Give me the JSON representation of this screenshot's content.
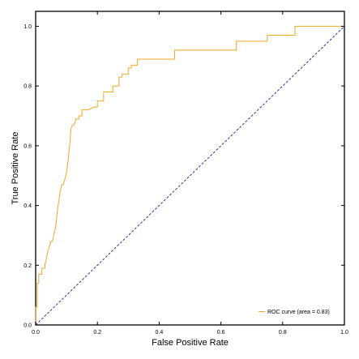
{
  "chart_data": {
    "type": "line",
    "title": "",
    "xlabel": "False Positive Rate",
    "ylabel": "True Positive Rate",
    "xlim": [
      0.0,
      1.0
    ],
    "ylim": [
      0.0,
      1.05
    ],
    "x_ticks": [
      0.0,
      0.2,
      0.4,
      0.6,
      0.8,
      1.0
    ],
    "y_ticks": [
      0.0,
      0.2,
      0.4,
      0.6,
      0.8,
      1.0
    ],
    "x_tick_labels": [
      "0.0",
      "0.2",
      "0.4",
      "0.6",
      "0.8",
      "1.0"
    ],
    "y_tick_labels": [
      "0.0",
      "0.2",
      "0.4",
      "0.6",
      "0.8",
      "1.0"
    ],
    "grid": false,
    "legend_position": "lower-right",
    "series": [
      {
        "name": "ROC curve (area = 0.83)",
        "color": "#f5a623",
        "style": "solid",
        "x": [
          0.0,
          0.0,
          0.005,
          0.005,
          0.01,
          0.01,
          0.02,
          0.02,
          0.03,
          0.03,
          0.04,
          0.05,
          0.055,
          0.06,
          0.065,
          0.07,
          0.08,
          0.085,
          0.09,
          0.095,
          0.1,
          0.105,
          0.11,
          0.115,
          0.12,
          0.125,
          0.13,
          0.14,
          0.14,
          0.15,
          0.15,
          0.17,
          0.19,
          0.2,
          0.2,
          0.22,
          0.22,
          0.25,
          0.25,
          0.27,
          0.27,
          0.28,
          0.28,
          0.3,
          0.3,
          0.31,
          0.31,
          0.33,
          0.33,
          0.45,
          0.45,
          0.65,
          0.65,
          0.75,
          0.75,
          0.84,
          0.84,
          1.0
        ],
        "y": [
          0.0,
          0.06,
          0.06,
          0.14,
          0.14,
          0.17,
          0.17,
          0.19,
          0.19,
          0.2,
          0.25,
          0.28,
          0.28,
          0.31,
          0.33,
          0.38,
          0.45,
          0.47,
          0.47,
          0.49,
          0.51,
          0.55,
          0.6,
          0.66,
          0.67,
          0.67,
          0.69,
          0.69,
          0.7,
          0.7,
          0.72,
          0.72,
          0.73,
          0.73,
          0.75,
          0.75,
          0.78,
          0.78,
          0.8,
          0.8,
          0.83,
          0.83,
          0.84,
          0.84,
          0.86,
          0.86,
          0.87,
          0.87,
          0.89,
          0.89,
          0.92,
          0.92,
          0.95,
          0.95,
          0.97,
          0.97,
          1.0,
          1.0
        ]
      },
      {
        "name": "",
        "color": "#1f1f8f",
        "style": "dashed",
        "x": [
          0.0,
          1.0
        ],
        "y": [
          0.0,
          1.0
        ]
      }
    ]
  }
}
